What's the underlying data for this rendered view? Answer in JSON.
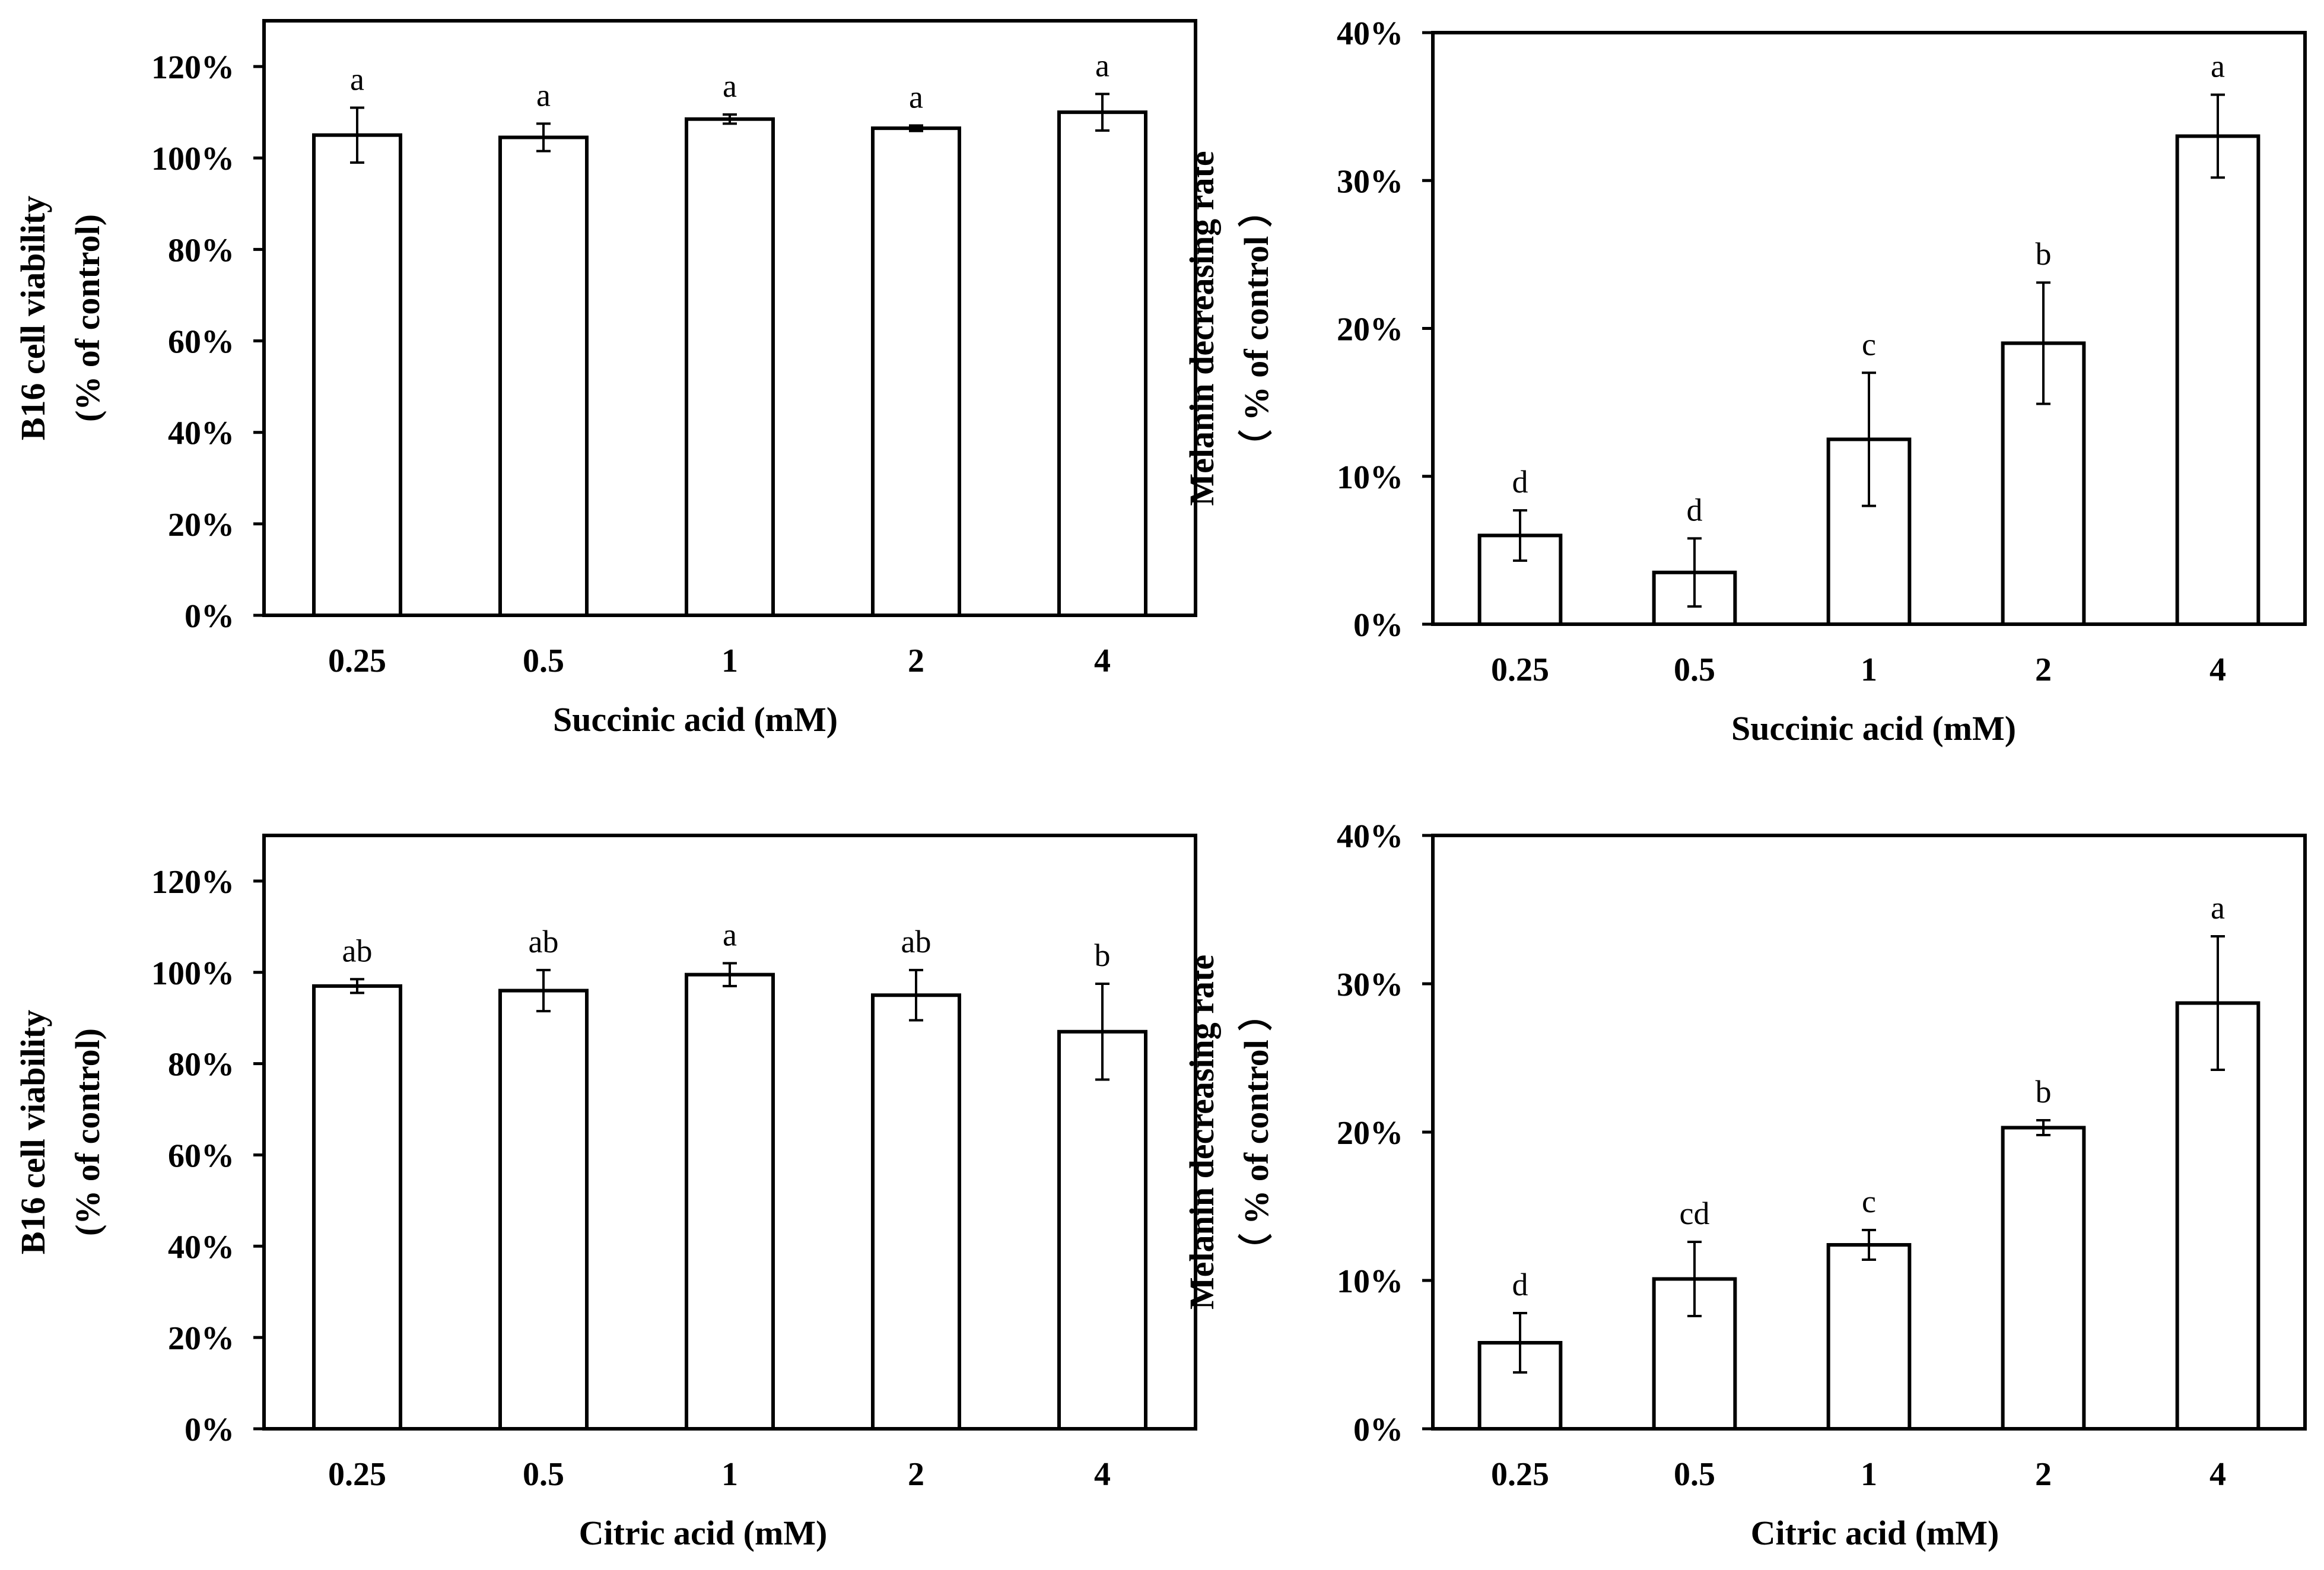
{
  "colors": {
    "bar_fill": "#ffffff",
    "stroke": "#000000",
    "background": "#ffffff"
  },
  "chart_data": [
    {
      "type": "bar",
      "panel": "top-left",
      "categories": [
        "0.25",
        "0.5",
        "1",
        "2",
        "4"
      ],
      "values": [
        105,
        104.5,
        108.5,
        106.5,
        110
      ],
      "errors": [
        6,
        3,
        1,
        0.6,
        4
      ],
      "significance": [
        "a",
        "a",
        "a",
        "a",
        "a"
      ],
      "xlabel": "Succinic acid (mM)",
      "ylabel": [
        "B16 cell viability",
        "(% of control)"
      ],
      "ylim": [
        0,
        130
      ],
      "yticks": [
        0,
        20,
        40,
        60,
        80,
        100,
        120
      ],
      "ytick_labels": [
        "0%",
        "20%",
        "40%",
        "60%",
        "80%",
        "100%",
        "120%"
      ],
      "grid": false
    },
    {
      "type": "bar",
      "panel": "top-right",
      "categories": [
        "0.25",
        "0.5",
        "1",
        "2",
        "4"
      ],
      "values": [
        6,
        3.5,
        12.5,
        19,
        33
      ],
      "errors": [
        1.7,
        2.3,
        4.5,
        4.1,
        2.8
      ],
      "significance": [
        "d",
        "d",
        "c",
        "b",
        "a"
      ],
      "xlabel": "Succinic acid (mM)",
      "ylabel": [
        "Melanin decreasing rate",
        "（ % of control ）"
      ],
      "ylim": [
        0,
        40
      ],
      "yticks": [
        0,
        10,
        20,
        30,
        40
      ],
      "ytick_labels": [
        "0%",
        "10%",
        "20%",
        "30%",
        "40%"
      ],
      "grid": false
    },
    {
      "type": "bar",
      "panel": "bottom-left",
      "categories": [
        "0.25",
        "0.5",
        "1",
        "2",
        "4"
      ],
      "values": [
        97,
        96,
        99.5,
        95,
        87
      ],
      "errors": [
        1.5,
        4.5,
        2.5,
        5.5,
        10.5
      ],
      "significance": [
        "ab",
        "ab",
        "a",
        "ab",
        "b"
      ],
      "xlabel": "Citric acid (mM)",
      "ylabel": [
        "B16 cell viability",
        "(% of control)"
      ],
      "ylim": [
        0,
        130
      ],
      "yticks": [
        0,
        20,
        40,
        60,
        80,
        100,
        120
      ],
      "ytick_labels": [
        "0%",
        "20%",
        "40%",
        "60%",
        "80%",
        "100%",
        "120%"
      ],
      "grid": false
    },
    {
      "type": "bar",
      "panel": "bottom-right",
      "categories": [
        "0.25",
        "0.5",
        "1",
        "2",
        "4"
      ],
      "values": [
        5.8,
        10.1,
        12.4,
        20.3,
        28.7
      ],
      "errors": [
        2,
        2.5,
        1,
        0.5,
        4.5
      ],
      "significance": [
        "d",
        "cd",
        "c",
        "b",
        "a"
      ],
      "xlabel": "Citric acid (mM)",
      "ylabel": [
        "Melanin decreasing rate",
        "（ % of control ）"
      ],
      "ylim": [
        0,
        40
      ],
      "yticks": [
        0,
        10,
        20,
        30,
        40
      ],
      "ytick_labels": [
        "0%",
        "10%",
        "20%",
        "30%",
        "40%"
      ],
      "grid": false
    }
  ]
}
